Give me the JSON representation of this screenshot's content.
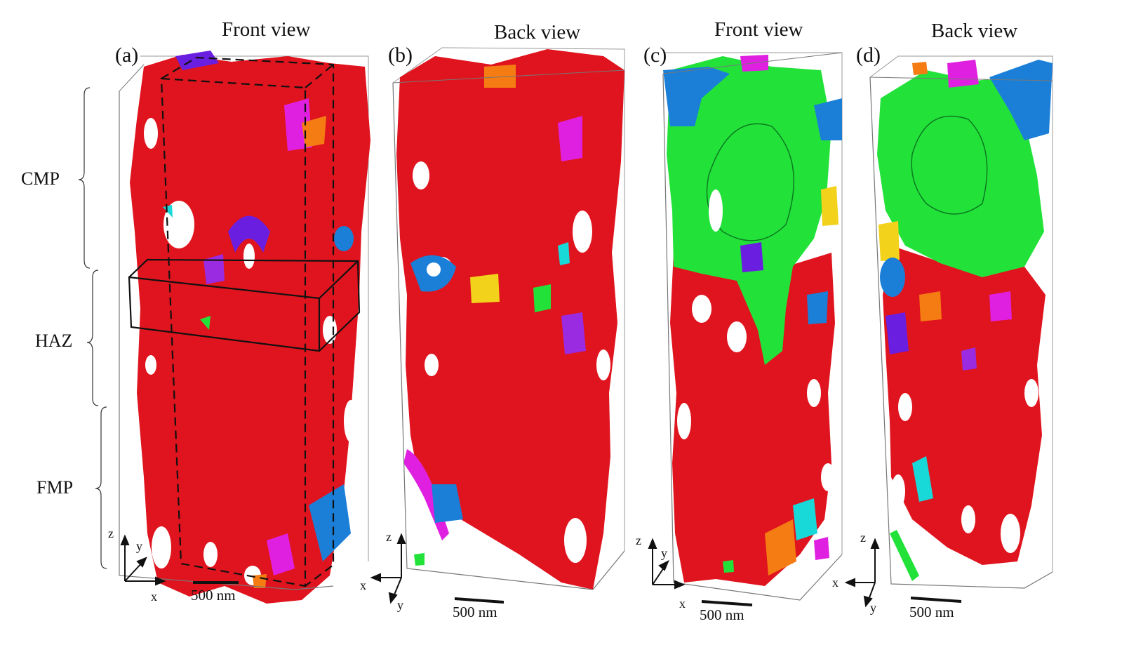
{
  "panels": [
    {
      "label": "(a)",
      "view": "Front view"
    },
    {
      "label": "(b)",
      "view": "Back view"
    },
    {
      "label": "(c)",
      "view": "Front view"
    },
    {
      "label": "(d)",
      "view": "Back view"
    }
  ],
  "regions": [
    "CMP",
    "HAZ",
    "FMP"
  ],
  "scale_bar": "500 nm",
  "axes": {
    "z": "z",
    "y": "y",
    "x": "x"
  },
  "colors": {
    "matrix_grain": "#e0141e",
    "large_grain_cd": "#22e23a",
    "blue_grain": "#1b7fd8",
    "violet_grain": "#6a1ee0",
    "magenta_grain": "#e020e0",
    "orange_grain": "#f57c12",
    "yellow_grain": "#f2d21a",
    "cyan_grain": "#18d8d8"
  }
}
